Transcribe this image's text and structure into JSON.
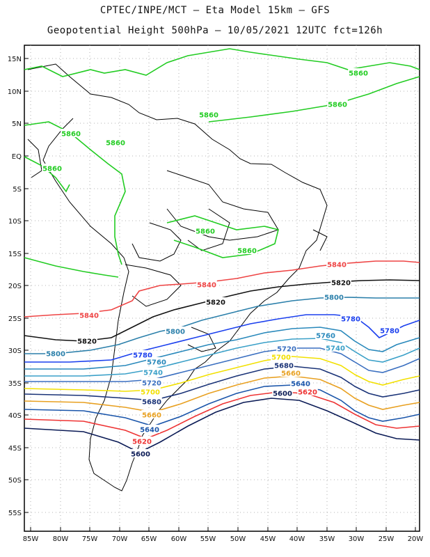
{
  "header": {
    "line1": "CPTEC/INPE/MCT –  Eta Model 15km – GFS",
    "line2": "Geopotential Height 500hPa – 10/05/2021 12UTC fct=126h"
  },
  "map": {
    "lon_range": [
      -86,
      -20
    ],
    "lat_range": [
      -58,
      16
    ],
    "lat_ticks": [
      "15N",
      "10N",
      "5N",
      "EQ",
      "5S",
      "10S",
      "15S",
      "20S",
      "25S",
      "30S",
      "35S",
      "40S",
      "45S",
      "50S",
      "55S"
    ],
    "lon_ticks": [
      "85W",
      "80W",
      "75W",
      "70W",
      "65W",
      "60W",
      "55W",
      "50W",
      "45W",
      "40W",
      "35W",
      "30W",
      "25W",
      "20W"
    ],
    "grid": true
  },
  "contours": [
    {
      "level": "5860",
      "color": "#22cc22",
      "labels": [
        "5860",
        "5860",
        "5860",
        "5860",
        "5860",
        "5860",
        "5860",
        "5860"
      ]
    },
    {
      "level": "5840",
      "color": "#ee4444",
      "labels": [
        "5840",
        "5840",
        "5840"
      ]
    },
    {
      "level": "5820",
      "color": "#111111",
      "labels": [
        "5820",
        "5820",
        "5820"
      ]
    },
    {
      "level": "5800",
      "color": "#2a7faa",
      "labels": [
        "5800",
        "5800",
        "5800"
      ]
    },
    {
      "level": "5780",
      "color": "#1a3fee",
      "labels": [
        "5780",
        "5780",
        "5780"
      ]
    },
    {
      "level": "5760",
      "color": "#2888bb",
      "labels": [
        "5760",
        "5760"
      ]
    },
    {
      "level": "5740",
      "color": "#3aa0c8",
      "labels": [
        "5740",
        "5740"
      ]
    },
    {
      "level": "5720",
      "color": "#3a6fc0",
      "labels": [
        "5720",
        "5720"
      ]
    },
    {
      "level": "5700",
      "color": "#f2e000",
      "labels": [
        "5700",
        "5700"
      ]
    },
    {
      "level": "5680",
      "color": "#1a3377",
      "labels": [
        "5680",
        "5680"
      ]
    },
    {
      "level": "5660",
      "color": "#e8a020",
      "labels": [
        "5660",
        "5660"
      ]
    },
    {
      "level": "5640",
      "color": "#1a55aa",
      "labels": [
        "5640",
        "5640"
      ]
    },
    {
      "level": "5620",
      "color": "#ee3333",
      "labels": [
        "5620",
        "5620"
      ]
    },
    {
      "level": "5600",
      "color": "#0a1a55",
      "labels": [
        "5600",
        "5600"
      ]
    }
  ]
}
